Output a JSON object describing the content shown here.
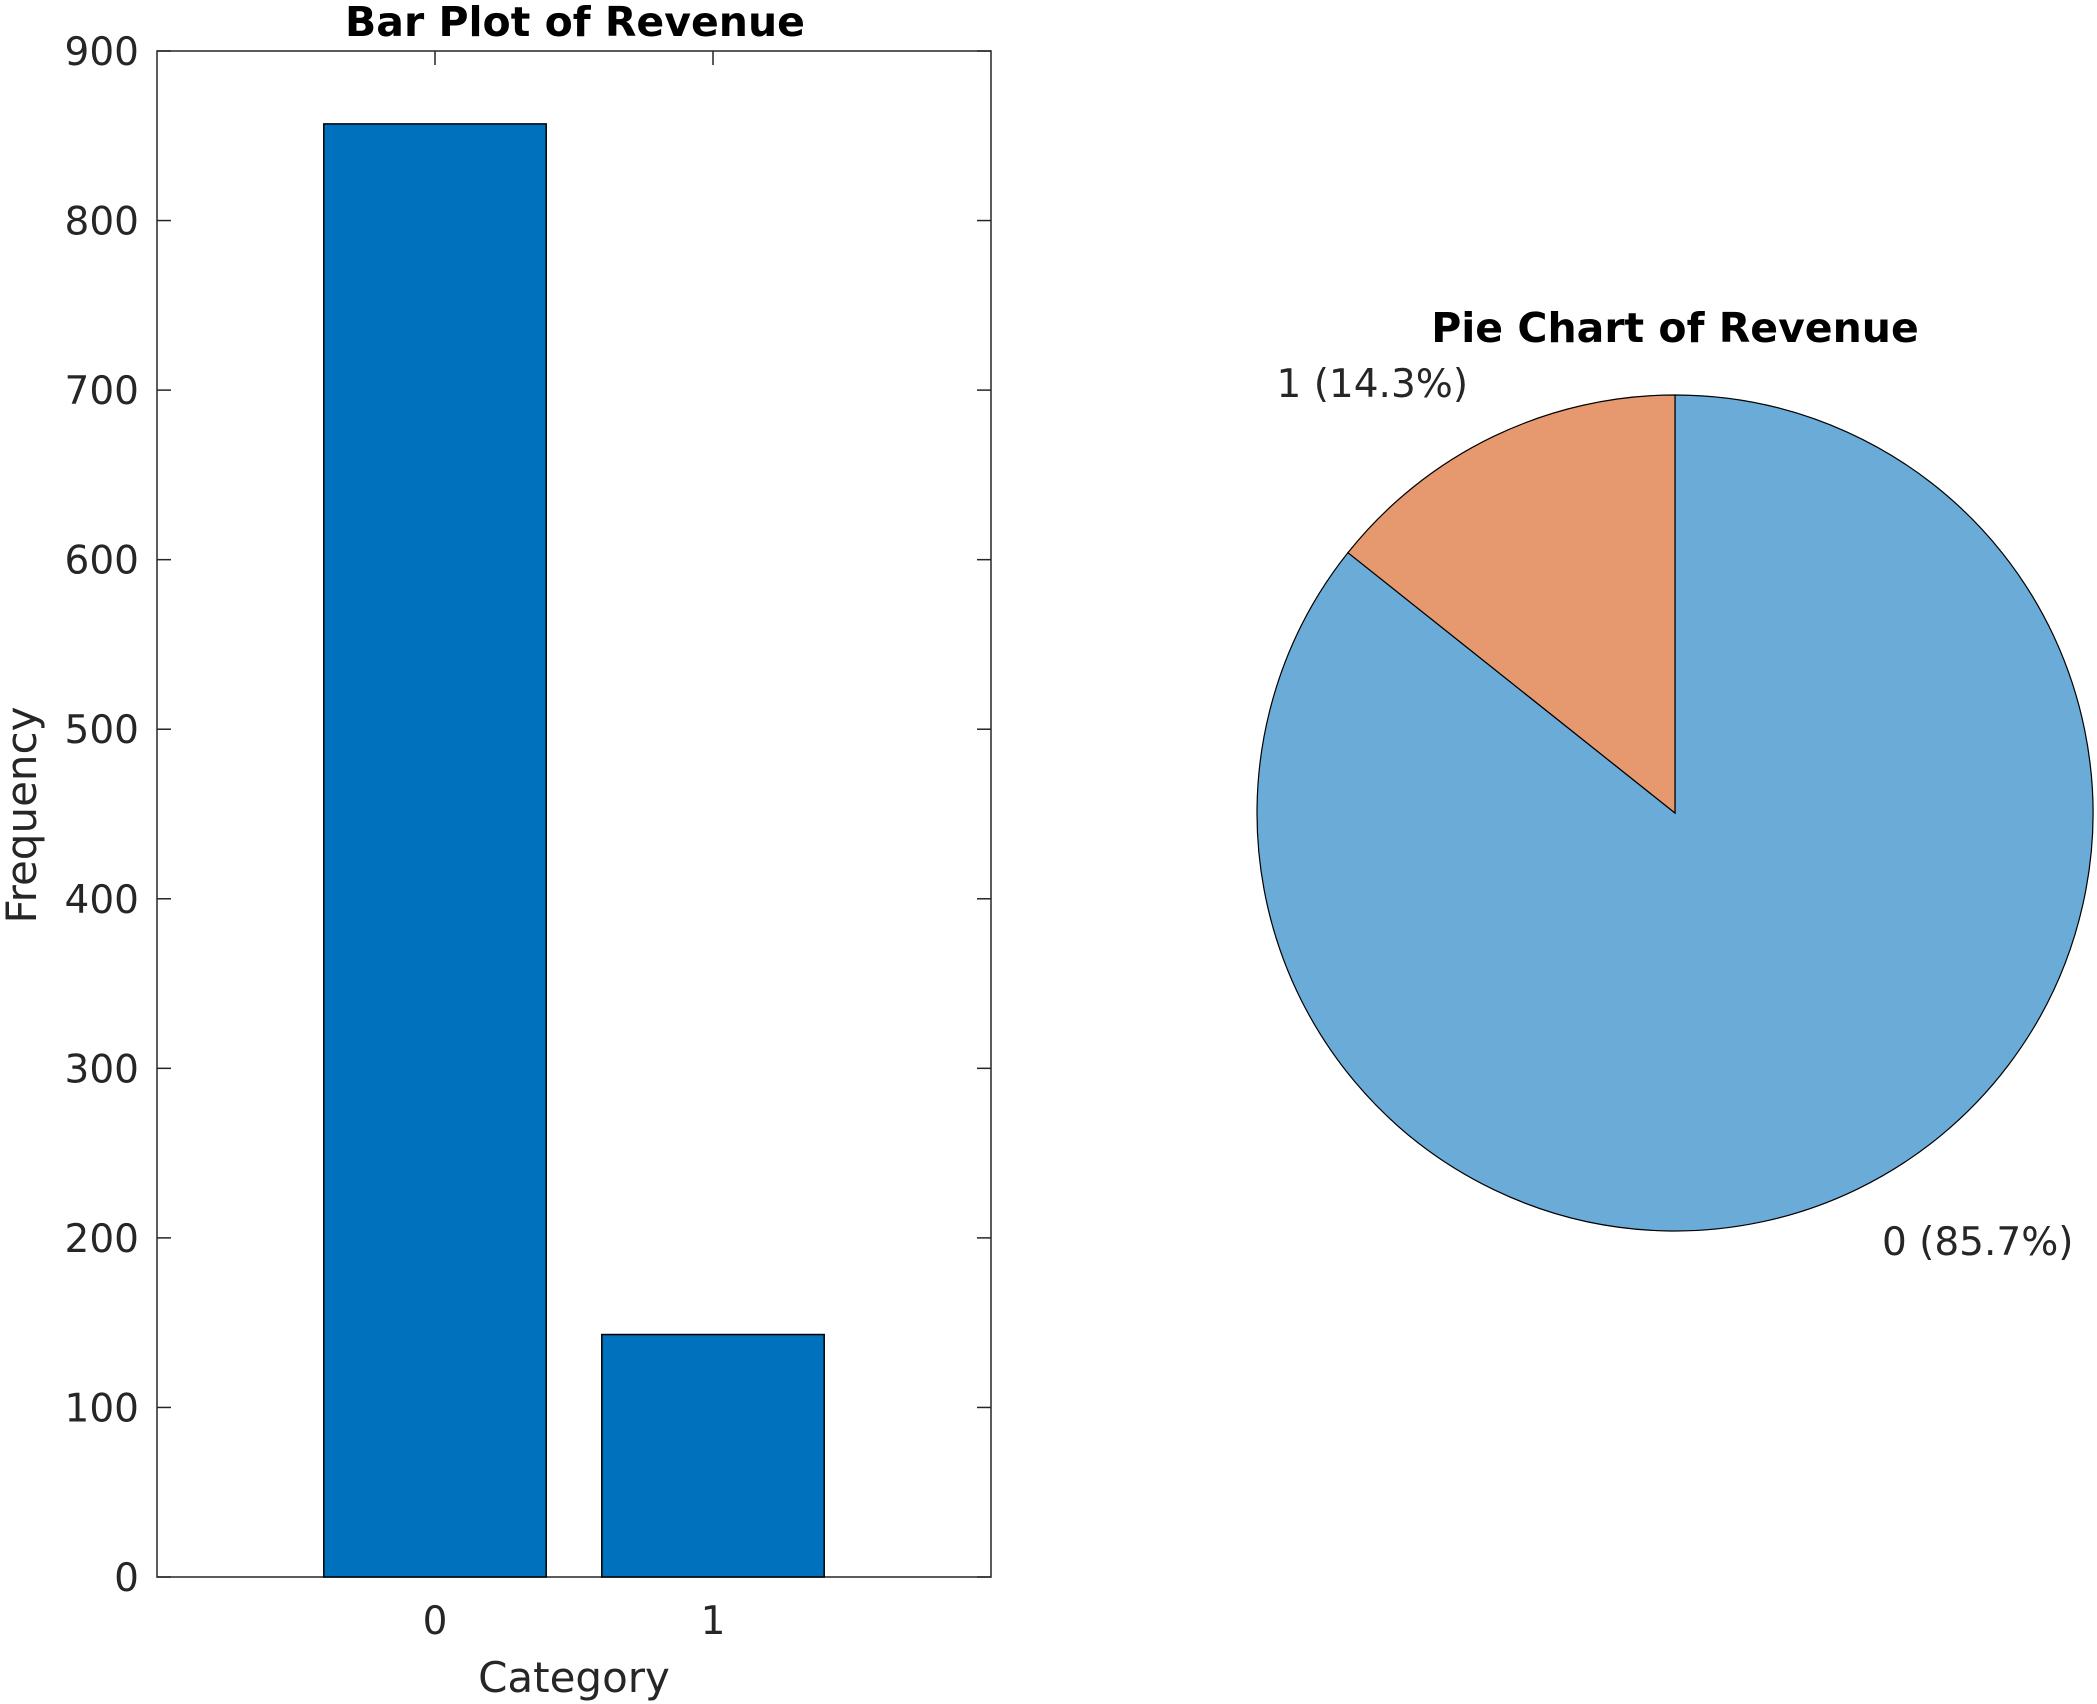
{
  "colors": {
    "bar": "#0072bd",
    "pie_0": "#6aabd8",
    "pie_1": "#e6986f",
    "axis": "#262626",
    "edge": "#000000"
  },
  "chart_data": [
    {
      "type": "bar",
      "title": "Bar Plot of Revenue",
      "xlabel": "Category",
      "ylabel": "Frequency",
      "categories": [
        "0",
        "1"
      ],
      "values": [
        857,
        143
      ],
      "ylim": [
        0,
        900
      ],
      "xlim": [
        -1,
        2
      ],
      "yticks": [
        0,
        100,
        200,
        300,
        400,
        500,
        600,
        700,
        800,
        900
      ],
      "grid": false
    },
    {
      "type": "pie",
      "title": "Pie Chart of Revenue",
      "labels": [
        "0 (85.7%)",
        "1 (14.3%)"
      ],
      "values": [
        857,
        143
      ]
    }
  ]
}
